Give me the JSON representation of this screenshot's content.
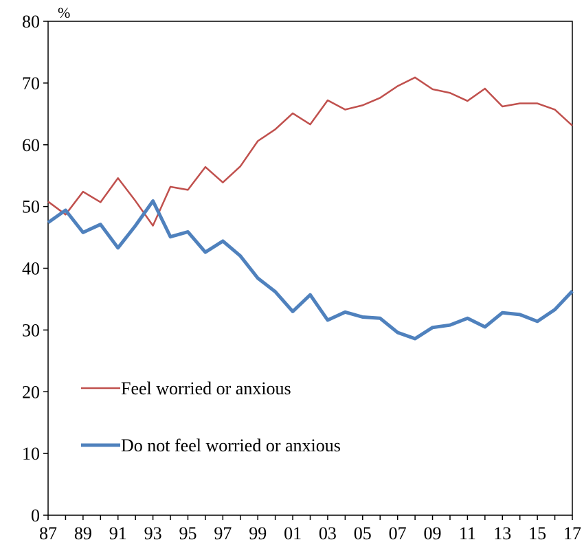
{
  "chart_data": {
    "type": "line",
    "y_label": "%",
    "categories": [
      "87",
      null,
      "89",
      null,
      "91",
      null,
      "93",
      null,
      "95",
      null,
      "97",
      null,
      "99",
      null,
      "01",
      null,
      "03",
      null,
      "05",
      null,
      "07",
      null,
      "09",
      null,
      "11",
      null,
      "13",
      null,
      "15",
      null,
      "17"
    ],
    "series": [
      {
        "name": "Feel worried or anxious",
        "color": "#c0504d",
        "values": [
          50.8,
          48.7,
          52.4,
          50.7,
          54.6,
          50.9,
          46.9,
          53.2,
          52.7,
          56.4,
          53.9,
          56.5,
          60.6,
          62.5,
          65.1,
          63.3,
          67.2,
          65.7,
          66.4,
          67.6,
          69.5,
          70.9,
          69.0,
          68.4,
          67.1,
          69.1,
          66.2,
          66.7,
          66.7,
          65.7,
          63.1
        ]
      },
      {
        "name": "Do not feel worried or anxious",
        "color": "#4f81bd",
        "values": [
          47.4,
          49.4,
          45.8,
          47.1,
          43.3,
          46.9,
          50.9,
          45.1,
          45.9,
          42.6,
          44.4,
          42.0,
          38.4,
          36.2,
          33.0,
          35.7,
          31.6,
          32.9,
          32.1,
          31.9,
          29.6,
          28.6,
          30.4,
          30.8,
          31.9,
          30.5,
          32.8,
          32.5,
          31.4,
          33.3,
          36.3
        ]
      }
    ],
    "ylim": [
      0,
      80
    ],
    "yticks": [
      0,
      10,
      20,
      30,
      40,
      50,
      60,
      70,
      80
    ],
    "legend": "lower left"
  }
}
